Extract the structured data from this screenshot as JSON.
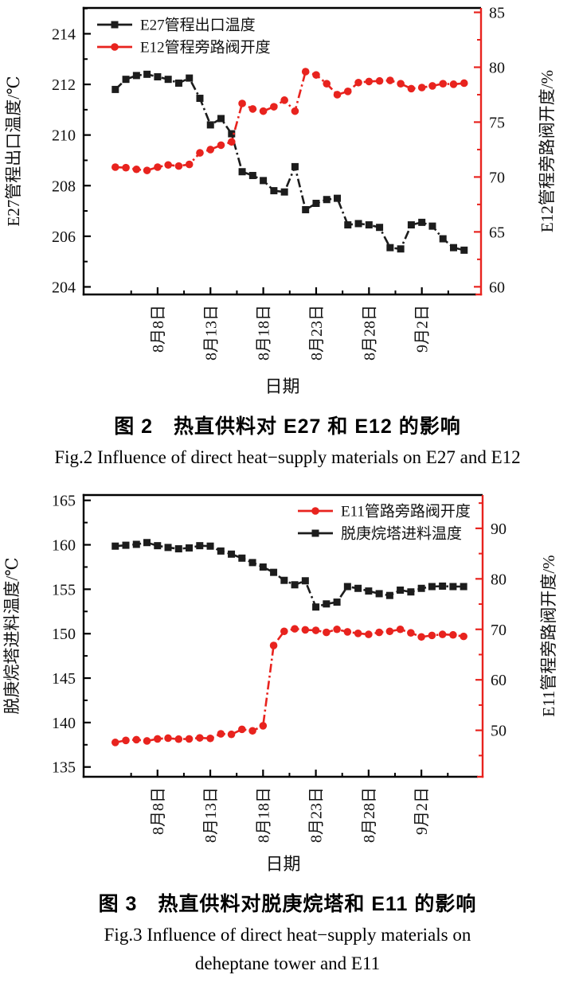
{
  "figure2": {
    "caption_zh": "图 2　热直供料对 E27 和 E12 的影响",
    "caption_en": "Fig.2  Influence of direct heat−supply materials on E27 and E12"
  },
  "figure3": {
    "caption_zh": "图 3　热直供料对脱庚烷塔和 E11 的影响",
    "caption_en_line1": "Fig.3  Influence of direct heat−supply materials on",
    "caption_en_line2": "deheptane tower and E11"
  },
  "chart_data": [
    {
      "type": "line",
      "title": "",
      "xlabel": "日期",
      "x_range": [
        -3.0,
        34.6
      ],
      "x_ticks": {
        "labels": [
          "8月8日",
          "8月13日",
          "8月18日",
          "8月23日",
          "8月28日",
          "9月2日"
        ],
        "positions": [
          4,
          9,
          14,
          19,
          24,
          29
        ],
        "minor_offset": 2.5
      },
      "frame_color": "#000000",
      "left_axis": {
        "label": "E27管程出口温度/℃",
        "range": [
          203.7,
          215.02
        ],
        "major_ticks": [
          204,
          206,
          208,
          210,
          212,
          214
        ],
        "minor_step": 1,
        "color": "#000000"
      },
      "right_axis": {
        "label": "E12管程旁路阀开度/%",
        "range": [
          59.3,
          85.4
        ],
        "major_ticks": [
          60,
          65,
          70,
          75,
          80,
          85
        ],
        "minor_step": 2.5,
        "color": "#e8231e"
      },
      "legend": {
        "position": "top-left",
        "items": [
          {
            "label": "E27管程出口温度",
            "color": "#1c1c1c",
            "marker": "square"
          },
          {
            "label": "E12管程旁路阀开度",
            "color": "#e8231e",
            "marker": "circle"
          }
        ]
      },
      "series": [
        {
          "name": "E27管程出口温度",
          "axis": "left",
          "color": "#1c1c1c",
          "marker": "square",
          "values": [
            211.8,
            212.2,
            212.35,
            212.4,
            212.3,
            212.2,
            212.05,
            212.25,
            211.45,
            210.4,
            210.65,
            210.05,
            208.55,
            208.4,
            208.2,
            207.8,
            207.75,
            208.75,
            207.05,
            207.3,
            207.45,
            207.5,
            206.45,
            206.5,
            206.45,
            206.35,
            205.55,
            205.5,
            206.45,
            206.55,
            206.4,
            205.9,
            205.55,
            205.45
          ]
        },
        {
          "name": "E12管程旁路阀开度",
          "axis": "right",
          "color": "#e8231e",
          "marker": "circle",
          "values": [
            70.9,
            70.85,
            70.7,
            70.6,
            70.9,
            71.1,
            71.0,
            71.15,
            72.2,
            72.5,
            72.9,
            73.2,
            76.7,
            76.2,
            76.0,
            76.4,
            77.0,
            76.0,
            79.6,
            79.3,
            78.5,
            77.5,
            77.8,
            78.6,
            78.7,
            78.75,
            78.8,
            78.5,
            78.05,
            78.15,
            78.3,
            78.5,
            78.45,
            78.55
          ]
        }
      ]
    },
    {
      "type": "line",
      "title": "",
      "xlabel": "日期",
      "x_range": [
        -3.0,
        34.8
      ],
      "x_ticks": {
        "labels": [
          "8月8日",
          "8月13日",
          "8月18日",
          "8月23日",
          "8月28日",
          "9月2日"
        ],
        "positions": [
          4,
          9,
          14,
          19,
          24,
          29
        ],
        "minor_offset": 2.5
      },
      "frame_color": "#000000",
      "left_axis": {
        "label": "脱庚烷塔进料温度/℃",
        "range": [
          133.9,
          165.6
        ],
        "major_ticks": [
          135,
          140,
          145,
          150,
          155,
          160,
          165
        ],
        "minor_step": 2.5,
        "color": "#000000"
      },
      "right_axis": {
        "label": "E11管程旁路阀开度/%",
        "range": [
          40.8,
          96.6
        ],
        "major_ticks": [
          50,
          60,
          70,
          80,
          90
        ],
        "minor_step": 5,
        "color": "#e8231e"
      },
      "legend": {
        "position": "top-right",
        "items": [
          {
            "label": "E11管路旁路阀开度",
            "color": "#e8231e",
            "marker": "circle"
          },
          {
            "label": "脱庚烷塔进料温度",
            "color": "#1c1c1c",
            "marker": "square"
          }
        ]
      },
      "series": [
        {
          "name": "脱庚烷塔进料温度",
          "axis": "left",
          "color": "#1c1c1c",
          "marker": "square",
          "values": [
            159.85,
            159.95,
            160.05,
            160.25,
            159.9,
            159.7,
            159.55,
            159.65,
            159.9,
            159.85,
            159.3,
            158.95,
            158.5,
            158.0,
            157.5,
            156.9,
            156.0,
            155.5,
            155.95,
            153.0,
            153.35,
            153.55,
            155.3,
            155.1,
            154.8,
            154.5,
            154.3,
            154.9,
            154.7,
            155.1,
            155.3,
            155.35,
            155.3,
            155.3
          ]
        },
        {
          "name": "E11管路旁路阀开度",
          "axis": "right",
          "color": "#e8231e",
          "marker": "circle",
          "values": [
            47.6,
            48.0,
            48.15,
            47.9,
            48.3,
            48.45,
            48.25,
            48.3,
            48.5,
            48.4,
            49.3,
            49.2,
            50.2,
            49.9,
            50.9,
            66.8,
            69.6,
            70.1,
            69.9,
            69.8,
            69.4,
            70.0,
            69.5,
            69.2,
            69.0,
            69.4,
            69.6,
            70.0,
            69.3,
            68.5,
            68.8,
            69.0,
            68.9,
            68.6
          ]
        }
      ]
    }
  ]
}
